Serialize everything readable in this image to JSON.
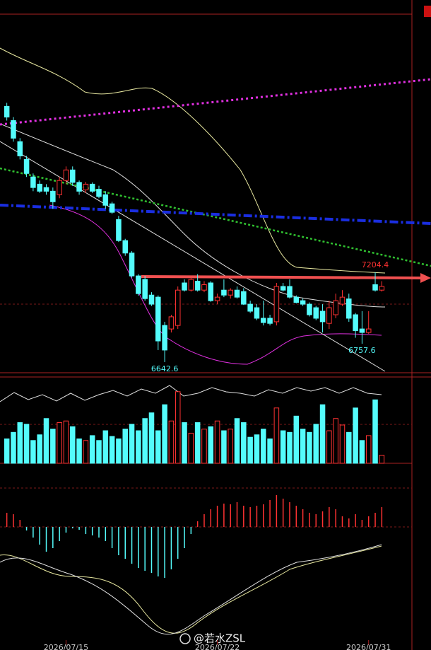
{
  "chart_data": {
    "type": "candlestick",
    "categories": [
      null,
      null,
      null,
      null,
      null,
      null,
      null,
      null,
      null,
      "2026/07/15",
      null,
      null,
      null,
      null,
      null,
      null,
      null,
      null,
      null,
      null,
      null,
      null,
      null,
      null,
      null,
      null,
      null,
      null,
      null,
      null,
      null,
      null,
      "2026/07/22",
      null,
      null,
      null,
      null,
      null,
      null,
      null,
      null,
      null,
      null,
      null,
      null,
      null,
      null,
      null,
      null,
      null,
      null,
      null,
      null,
      null,
      null,
      "2026/07/31",
      null,
      null
    ],
    "open": [
      8243,
      8154,
      8022,
      7911,
      7801,
      7756,
      7735,
      7712,
      7690,
      7779,
      7845,
      7767,
      7720,
      7756,
      7724,
      7690,
      7633,
      7535,
      7403,
      7325,
      7182,
      7160,
      7062,
      7049,
      6872,
      6850,
      6872,
      7138,
      7093,
      7149,
      7093,
      7138,
      7027,
      7093,
      7062,
      7093,
      7084,
      7005,
      6983,
      6917,
      6917,
      6895,
      7116,
      7116,
      7049,
      7027,
      7005,
      6983,
      6961,
      6885,
      6939,
      7005,
      7038,
      6939,
      6850,
      6828,
      7127,
      7093
    ],
    "high": [
      8265,
      8176,
      8044,
      7933,
      7823,
      7779,
      7756,
      7735,
      7801,
      7867,
      7867,
      7779,
      7770,
      7767,
      7746,
      7712,
      7646,
      7558,
      7414,
      7337,
      7193,
      7182,
      7080,
      7060,
      6895,
      6939,
      7116,
      7160,
      7171,
      7193,
      7149,
      7149,
      7071,
      7160,
      7105,
      7116,
      7105,
      7027,
      7005,
      7027,
      6939,
      7138,
      7138,
      7160,
      7060,
      7040,
      7016,
      6994,
      7005,
      7027,
      7071,
      7093,
      7071,
      6950,
      6961,
      6961,
      7204.4,
      7149
    ],
    "low": [
      8154,
      8022,
      7911,
      7801,
      7712,
      7701,
      7690,
      7602,
      7668,
      7756,
      7745,
      7690,
      7700,
      7701,
      7668,
      7602,
      7570,
      7394,
      7308,
      7171,
      7058,
      7027,
      6994,
      6718,
      6642.6,
      6828,
      6850,
      7084,
      7084,
      7084,
      7080,
      7020,
      7005,
      7049,
      7040,
      7040,
      7000,
      6950,
      6905,
      6872,
      6872,
      6872,
      7084,
      7040,
      7010,
      6994,
      6928,
      6905,
      6828,
      6850,
      6917,
      6994,
      6895,
      6795,
      6757.6,
      6820,
      7084,
      7084
    ],
    "close": [
      8176,
      8044,
      7933,
      7823,
      7735,
      7712,
      7712,
      7646,
      7779,
      7845,
      7767,
      7712,
      7756,
      7712,
      7679,
      7624,
      7580,
      7403,
      7325,
      7182,
      7071,
      7040,
      7005,
      6775,
      6718,
      6926,
      7093,
      7093,
      7160,
      7093,
      7127,
      7027,
      7049,
      7062,
      7093,
      7049,
      7005,
      6961,
      6917,
      6890,
      6885,
      7116,
      7093,
      7049,
      7016,
      7005,
      6939,
      6917,
      6895,
      6983,
      7027,
      7049,
      6917,
      6839,
      6828,
      6850,
      7093,
      7116
    ],
    "ylim": [
      6576,
      8820
    ],
    "high_labels": [
      7204.4
    ],
    "low_labels": [
      6757.6,
      6642.6
    ],
    "up_color": "#ff3232",
    "down_color": "#54fcfc",
    "volume": [
      30,
      38,
      50,
      48,
      28,
      35,
      55,
      42,
      50,
      52,
      45,
      30,
      28,
      34,
      28,
      40,
      33,
      30,
      42,
      48,
      40,
      55,
      62,
      40,
      72,
      52,
      88,
      50,
      37,
      50,
      42,
      45,
      52,
      40,
      42,
      55,
      50,
      32,
      35,
      42,
      30,
      68,
      40,
      38,
      58,
      42,
      38,
      48,
      72,
      40,
      55,
      47,
      38,
      68,
      28,
      34,
      78,
      10
    ],
    "volume_ylim": [
      0,
      100
    ],
    "macd": [
      20,
      18,
      10,
      -5,
      -15,
      -25,
      -35,
      -30,
      -20,
      -8,
      -2,
      -4,
      -10,
      -12,
      -15,
      -20,
      -30,
      -40,
      -45,
      -52,
      -58,
      -62,
      -65,
      -70,
      -72,
      -60,
      -45,
      -30,
      -10,
      8,
      18,
      25,
      30,
      33,
      32,
      35,
      30,
      28,
      30,
      32,
      38,
      45,
      40,
      35,
      30,
      25,
      20,
      18,
      22,
      28,
      25,
      15,
      12,
      18,
      10,
      15,
      20,
      28
    ],
    "macd_ylim": [
      -80,
      80
    ],
    "watermark": "@若水ZSL"
  }
}
